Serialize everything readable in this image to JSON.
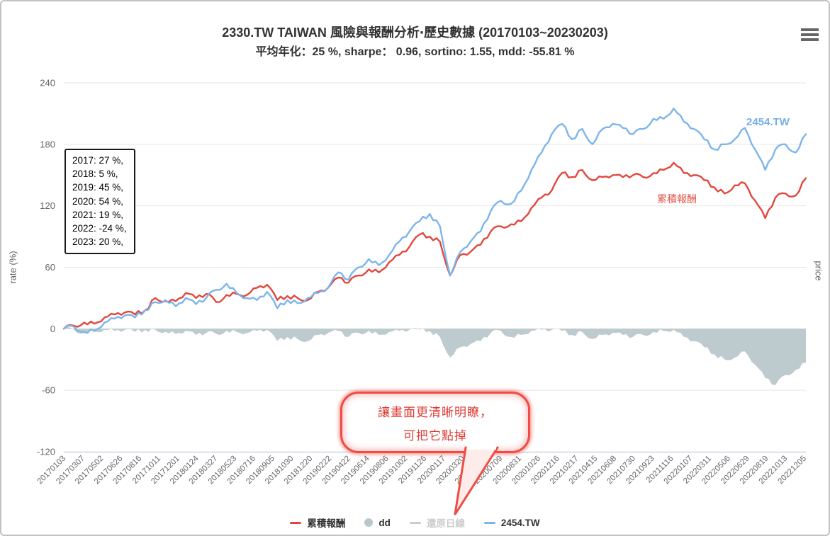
{
  "header": {
    "title": "2330.TW TAIWAN 風險與報酬分析‧歷史數據 (20170103~20230203)",
    "subtitle": "平均年化：25 %, sharpe： 0.96, sortino: 1.55, mdd: -55.81 %"
  },
  "menu": {
    "icon": "hamburger-menu-icon"
  },
  "axes": {
    "left_title": "rate (%)",
    "right_title": "price",
    "y_ticks": [
      240,
      180,
      120,
      60,
      0,
      -60,
      -120
    ],
    "x_tick_labels": [
      "20170103",
      "20170307",
      "20170502",
      "20170626",
      "20170816",
      "20171011",
      "20171201",
      "20180124",
      "20180327",
      "20180523",
      "20180716",
      "20180905",
      "20181030",
      "20181220",
      "20190222",
      "20190422",
      "20190614",
      "20190806",
      "20191002",
      "20191126",
      "20200117",
      "20200320",
      "20200515",
      "20200709",
      "20200831",
      "20201026",
      "20201216",
      "20210217",
      "20210415",
      "20210608",
      "20210730",
      "20210923",
      "20211116",
      "20220107",
      "20220311",
      "20220506",
      "20220629",
      "20220819",
      "20221013",
      "20221205"
    ]
  },
  "annotation_box": {
    "lines": [
      "2017: 27 %,",
      "2018: 5 %,",
      "2019: 45 %,",
      "2020: 54 %,",
      "2021: 19 %,",
      "2022: -24 %,",
      "2023: 20 %,"
    ]
  },
  "series_labels": {
    "blue": "2454.TW",
    "red": "累積報酬"
  },
  "callout": {
    "line1": "讓畫面更清晰明瞭，",
    "line2": "可把它點掉"
  },
  "legend": {
    "items": [
      {
        "label": "累積報酬",
        "marker": "line",
        "color": "#e2473c",
        "disabled": false
      },
      {
        "label": "dd",
        "marker": "circle",
        "color": "#b9c7cb",
        "disabled": false
      },
      {
        "label": "還原日線",
        "marker": "line",
        "color": "#cccccc",
        "disabled": true
      },
      {
        "label": "2454.TW",
        "marker": "line",
        "color": "#7cb5ec",
        "disabled": false
      }
    ]
  },
  "colors": {
    "red_series": "#e2473c",
    "blue_series": "#7cb5ec",
    "dd_area": "#b9c7cb",
    "disabled_gray": "#cccccc",
    "callout_red": "#ee4c44",
    "gridline": "#e7e7e7",
    "x_axis_line": "#ccd6eb",
    "tick_text": "#666666"
  },
  "chart_data": {
    "type": "line",
    "title": "2330.TW TAIWAN 風險與報酬分析‧歷史數據 (20170103~20230203)",
    "subtitle": "平均年化：25 %, sharpe： 0.96, sortino: 1.55, mdd: -55.81 %",
    "xlabel": "",
    "ylabel_left": "rate (%)",
    "ylabel_right": "price",
    "ylim": [
      -120,
      240
    ],
    "grid": true,
    "legend_position": "bottom",
    "x_range": [
      "20170103",
      "20230203"
    ],
    "x": [
      "2017-01",
      "2017-02",
      "2017-03",
      "2017-04",
      "2017-05",
      "2017-06",
      "2017-07",
      "2017-08",
      "2017-09",
      "2017-10",
      "2017-11",
      "2017-12",
      "2018-01",
      "2018-02",
      "2018-03",
      "2018-04",
      "2018-05",
      "2018-06",
      "2018-07",
      "2018-08",
      "2018-09",
      "2018-10",
      "2018-11",
      "2018-12",
      "2019-01",
      "2019-02",
      "2019-03",
      "2019-04",
      "2019-05",
      "2019-06",
      "2019-07",
      "2019-08",
      "2019-09",
      "2019-10",
      "2019-11",
      "2019-12",
      "2020-01",
      "2020-02",
      "2020-03",
      "2020-04",
      "2020-05",
      "2020-06",
      "2020-07",
      "2020-08",
      "2020-09",
      "2020-10",
      "2020-11",
      "2020-12",
      "2021-01",
      "2021-02",
      "2021-03",
      "2021-04",
      "2021-05",
      "2021-06",
      "2021-07",
      "2021-08",
      "2021-09",
      "2021-10",
      "2021-11",
      "2021-12",
      "2022-01",
      "2022-02",
      "2022-03",
      "2022-04",
      "2022-05",
      "2022-06",
      "2022-07",
      "2022-08",
      "2022-09",
      "2022-10",
      "2022-11",
      "2022-12",
      "2023-01",
      "2023-02"
    ],
    "series": [
      {
        "name": "累積報酬",
        "type": "line",
        "color": "#e2473c",
        "visible": true,
        "values": [
          0,
          3,
          6,
          5,
          11,
          14,
          16,
          14,
          18,
          30,
          27,
          27,
          35,
          30,
          34,
          26,
          33,
          34,
          33,
          40,
          43,
          28,
          32,
          30,
          28,
          36,
          40,
          50,
          45,
          52,
          58,
          55,
          65,
          72,
          80,
          92,
          90,
          85,
          52,
          72,
          75,
          82,
          95,
          100,
          102,
          105,
          118,
          128,
          135,
          152,
          148,
          155,
          145,
          148,
          150,
          148,
          150,
          148,
          152,
          155,
          162,
          152,
          150,
          145,
          138,
          132,
          140,
          142,
          125,
          108,
          128,
          132,
          130,
          147
        ]
      },
      {
        "name": "dd",
        "type": "area",
        "color": "#b9c7cb",
        "visible": true,
        "values": [
          0,
          -1,
          -4,
          -3,
          -1,
          -2,
          -1,
          -3,
          -1,
          -1,
          -3,
          -5,
          -2,
          -6,
          -4,
          -5,
          -2,
          -3,
          -4,
          -2,
          -1,
          -12,
          -8,
          -10,
          -12,
          -6,
          -4,
          -2,
          -8,
          -4,
          -2,
          -6,
          -3,
          -2,
          -1,
          -1,
          -2,
          -8,
          -28,
          -18,
          -15,
          -12,
          -4,
          -2,
          -8,
          -6,
          -2,
          -1,
          -1,
          -2,
          -6,
          -3,
          -10,
          -6,
          -4,
          -6,
          -8,
          -6,
          -3,
          -2,
          -1,
          -8,
          -12,
          -18,
          -25,
          -30,
          -28,
          -22,
          -35,
          -48,
          -55,
          -45,
          -40,
          -33
        ]
      },
      {
        "name": "還原日線",
        "type": "line",
        "color": "#cccccc",
        "visible": false,
        "values": []
      },
      {
        "name": "2454.TW",
        "type": "line",
        "color": "#7cb5ec",
        "visible": true,
        "values": [
          0,
          2,
          -3,
          -2,
          6,
          10,
          13,
          11,
          18,
          26,
          28,
          22,
          30,
          24,
          30,
          38,
          44,
          35,
          30,
          28,
          36,
          20,
          28,
          25,
          30,
          35,
          40,
          55,
          48,
          60,
          68,
          62,
          72,
          85,
          95,
          105,
          112,
          100,
          52,
          75,
          85,
          95,
          115,
          125,
          122,
          135,
          155,
          172,
          190,
          200,
          185,
          195,
          180,
          195,
          200,
          196,
          190,
          195,
          205,
          205,
          215,
          202,
          195,
          185,
          175,
          180,
          185,
          196,
          175,
          155,
          175,
          180,
          172,
          190
        ]
      }
    ],
    "annotations": [
      {
        "text": "2017: 27 %, 2018: 5 %, 2019: 45 %, 2020: 54 %, 2021: 19 %, 2022: -24 %, 2023: 20 %,",
        "position": "upper-left-box"
      },
      {
        "text": "讓畫面更清晰明瞭，可把它點掉",
        "position": "callout-bubble-pointing-at-legend"
      }
    ]
  }
}
